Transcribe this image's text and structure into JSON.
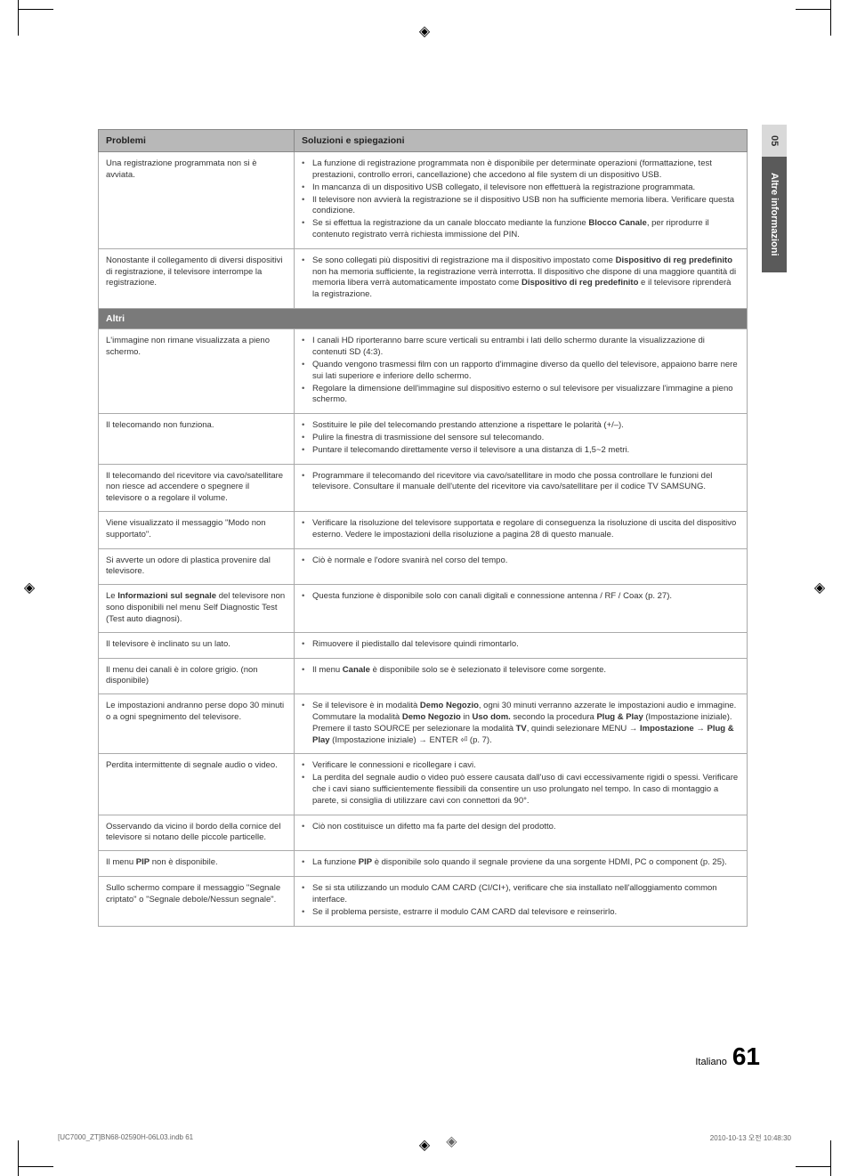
{
  "sideTab": {
    "num": "05",
    "label": "Altre informazioni"
  },
  "headers": {
    "col1": "Problemi",
    "col2": "Soluzioni e spiegazioni"
  },
  "sectionAltri": "Altri",
  "rows": [
    {
      "prob": "Una registrazione programmata non si è avviata.",
      "sol": [
        "La funzione di registrazione programmata non è disponibile per determinate operazioni (formattazione, test prestazioni, controllo errori, cancellazione) che accedono al file system di un dispositivo USB.",
        "In mancanza di un dispositivo USB collegato, il televisore non effettuerà la registrazione programmata.",
        "Il televisore non avvierà la registrazione se il dispositivo USB non ha sufficiente memoria libera. Verificare questa condizione.",
        "Se si effettua la registrazione da un canale bloccato mediante la funzione <b>Blocco Canale</b>, per riprodurre il contenuto registrato verrà richiesta immissione del PIN."
      ]
    },
    {
      "prob": "Nonostante il collegamento di diversi dispositivi di registrazione, il televisore interrompe la registrazione.",
      "sol": [
        "Se sono collegati più dispositivi di registrazione ma il dispositivo impostato come <b>Dispositivo di reg predefinito</b> non ha memoria sufficiente, la registrazione verrà interrotta. Il dispositivo che dispone di una maggiore quantità di memoria libera verrà automaticamente impostato come <b>Dispositivo di reg predefinito</b> e il televisore riprenderà la registrazione."
      ]
    }
  ],
  "rowsAltri": [
    {
      "prob": "L'immagine non rimane visualizzata a pieno schermo.",
      "sol": [
        "I canali HD riporteranno barre scure verticali su entrambi i lati dello schermo durante la visualizzazione di contenuti SD (4:3).",
        "Quando vengono trasmessi film con un rapporto d'immagine diverso da quello del televisore, appaiono barre nere sui lati superiore e inferiore dello schermo.",
        "Regolare la dimensione dell'immagine sul dispositivo esterno o sul televisore per visualizzare l'immagine a pieno schermo."
      ]
    },
    {
      "prob": "Il telecomando non funziona.",
      "sol": [
        "Sostituire le pile del telecomando prestando attenzione a rispettare le polarità (+/–).",
        "Pulire la finestra di trasmissione del sensore sul telecomando.",
        "Puntare il telecomando direttamente verso il televisore a una distanza di 1,5~2 metri."
      ]
    },
    {
      "prob": "Il telecomando del ricevitore via cavo/satellitare non riesce ad accendere o spegnere il televisore o a regolare il volume.",
      "sol": [
        "Programmare il telecomando del ricevitore via cavo/satellitare in modo che possa controllare le funzioni del televisore. Consultare il manuale dell'utente del ricevitore via cavo/satellitare per il codice TV SAMSUNG."
      ]
    },
    {
      "prob": "Viene visualizzato il messaggio \"Modo non supportato\".",
      "sol": [
        "Verificare la risoluzione del televisore supportata e regolare di conseguenza la risoluzione di uscita del dispositivo esterno. Vedere le impostazioni della risoluzione a pagina 28 di questo manuale."
      ]
    },
    {
      "prob": "Si avverte un odore di plastica provenire dal televisore.",
      "sol": [
        "Ciò è normale e l'odore svanirà nel corso del tempo."
      ]
    },
    {
      "prob": "Le <b>Informazioni sul segnale</b> del televisore non sono disponibili nel menu Self Diagnostic Test (Test auto diagnosi).",
      "sol": [
        "Questa funzione è disponibile solo con canali digitali e connessione antenna / RF / Coax (p. 27)."
      ]
    },
    {
      "prob": "Il televisore è inclinato su un lato.",
      "sol": [
        "Rimuovere il piedistallo dal televisore quindi rimontarlo."
      ]
    },
    {
      "prob": "Il menu dei canali è in colore grigio. (non disponibile)",
      "sol": [
        "Il menu <b>Canale</b> è disponibile solo se è selezionato il televisore come sorgente."
      ]
    },
    {
      "prob": "Le impostazioni andranno perse dopo 30 minuti o a ogni spegnimento del televisore.",
      "sol": [
        "Se il televisore è in modalità <b>Demo Negozio</b>, ogni 30 minuti verranno azzerate le impostazioni audio e immagine. Commutare la modalità <b>Demo Negozio</b> in <b>Uso dom.</b> secondo la procedura <b>Plug & Play</b> (Impostazione iniziale). Premere il tasto SOURCE per selezionare la modalità <b>TV</b>, quindi selezionare MENU → <b>Impostazione</b> → <b>Plug & Play</b> (Impostazione iniziale) → ENTER ⏎ (p. 7)."
      ]
    },
    {
      "prob": "Perdita intermittente di segnale audio o video.",
      "sol": [
        "Verificare le connessioni e ricollegare i cavi.",
        "La perdita del segnale audio o video può essere causata dall'uso di cavi eccessivamente rigidi o spessi. Verificare che i cavi siano sufficientemente flessibili da consentire un uso prolungato nel tempo. In caso di montaggio a parete, si consiglia di utilizzare cavi con connettori da 90°."
      ]
    },
    {
      "prob": "Osservando da vicino il bordo della cornice del televisore si notano delle piccole particelle.",
      "sol": [
        "Ciò non costituisce un difetto ma fa parte del design del prodotto."
      ]
    },
    {
      "prob": "Il menu <b>PIP</b> non è disponibile.",
      "sol": [
        "La funzione <b>PIP</b> è disponibile solo quando il segnale proviene da una sorgente HDMI, PC o component (p. 25)."
      ]
    },
    {
      "prob": "Sullo schermo compare il messaggio \"Segnale criptato\" o \"Segnale debole/Nessun segnale\".",
      "sol": [
        "Se si sta utilizzando un modulo CAM CARD (CI/CI+), verificare che sia installato nell'alloggiamento common interface.",
        "Se il problema persiste, estrarre il modulo CAM CARD dal televisore e reinserirlo."
      ]
    }
  ],
  "footer": {
    "lang": "Italiano",
    "page": "61"
  },
  "printLine": {
    "left": "[UC7000_ZT]BN68-02590H-06L03.indb   61",
    "right": "2010-10-13   오전 10:48:30"
  }
}
